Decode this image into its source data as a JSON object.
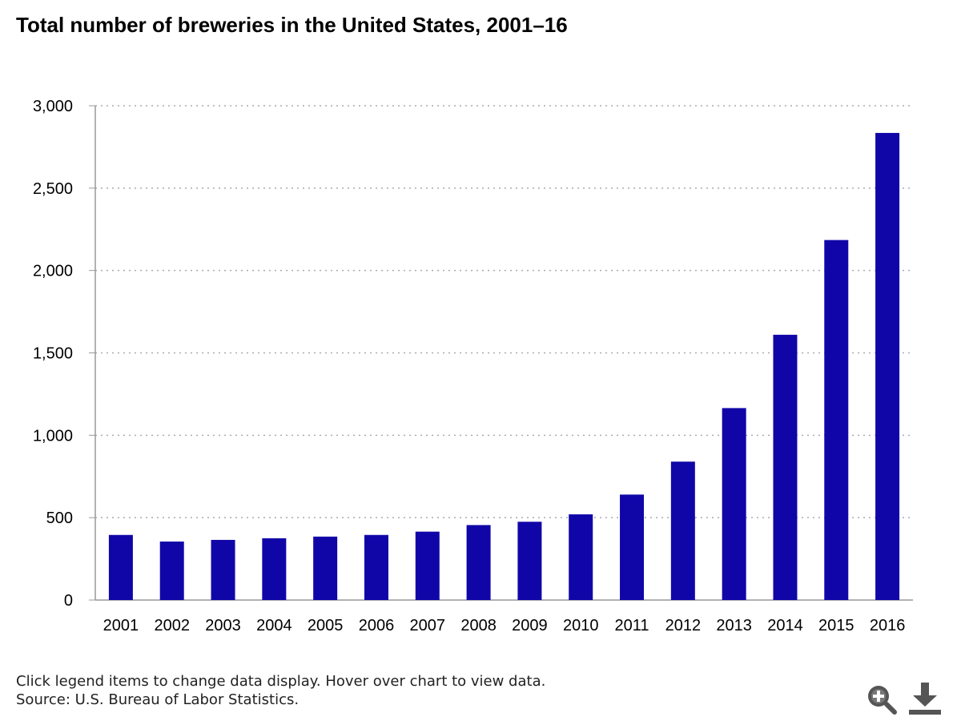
{
  "chart_data": {
    "type": "bar",
    "title": "Total number of breweries in the United States, 2001–16",
    "xlabel": "",
    "ylabel": "",
    "categories": [
      "2001",
      "2002",
      "2003",
      "2004",
      "2005",
      "2006",
      "2007",
      "2008",
      "2009",
      "2010",
      "2011",
      "2012",
      "2013",
      "2014",
      "2015",
      "2016"
    ],
    "series": [
      {
        "name": "",
        "values": [
          395,
          355,
          365,
          375,
          385,
          395,
          415,
          455,
          475,
          520,
          640,
          840,
          1165,
          1610,
          2185,
          2835
        ],
        "color": "#1006a8"
      }
    ],
    "ylim": [
      0,
      3000
    ],
    "yticks": [
      0,
      500,
      1000,
      1500,
      2000,
      2500,
      3000
    ],
    "ytick_labels": [
      "0",
      "500",
      "1,000",
      "1,500",
      "2,000",
      "2,500",
      "3,000"
    ],
    "grid": true,
    "legend": "none"
  },
  "footer": {
    "note": "Click legend items to change data display. Hover over chart to view data.",
    "source": "Source: U.S. Bureau of Labor Statistics."
  },
  "tools": {
    "zoom_icon": "zoom-in-icon",
    "download_icon": "download-icon"
  },
  "colors": {
    "bar": "#1006a8",
    "grid": "#aaaaaa",
    "axis": "#999999",
    "icon": "#555555"
  }
}
